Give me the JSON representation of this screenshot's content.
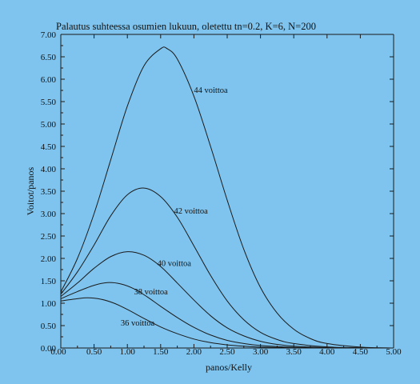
{
  "chart_data": {
    "type": "line",
    "title": "Palautus suhteessa osumien lukuun, oletettu tn=0.2, K=6, N=200",
    "xlabel": "panos/Kelly",
    "ylabel": "Voitot/panos",
    "xlim": [
      0,
      5
    ],
    "ylim": [
      0,
      7
    ],
    "xticks": [
      "0.00",
      "0.50",
      "1.00",
      "1.50",
      "2.00",
      "2.50",
      "3.00",
      "3.50",
      "4.00",
      "4.50",
      "5.00"
    ],
    "yticks": [
      "0.00",
      "0.50",
      "1.00",
      "1.50",
      "2.00",
      "2.50",
      "3.00",
      "3.50",
      "4.00",
      "4.50",
      "5.00",
      "5.50",
      "6.00",
      "6.50",
      "7.00"
    ],
    "grid": false,
    "legend": "inline labels",
    "series": [
      {
        "name": "36 voittoa",
        "x": [
          0,
          0.25,
          0.4,
          0.6,
          0.8,
          1.0,
          1.25,
          1.5,
          1.75,
          2.0,
          2.25,
          2.5,
          2.75,
          3.0,
          3.5,
          4.0,
          4.5,
          5.0
        ],
        "y": [
          1.05,
          1.1,
          1.12,
          1.09,
          1.0,
          0.86,
          0.66,
          0.47,
          0.32,
          0.2,
          0.12,
          0.07,
          0.04,
          0.02,
          0.006,
          0.002,
          0.0005,
          0.0
        ]
      },
      {
        "name": "38 voittoa",
        "x": [
          0,
          0.25,
          0.5,
          0.7,
          0.9,
          1.1,
          1.3,
          1.5,
          1.75,
          2.0,
          2.25,
          2.5,
          2.75,
          3.0,
          3.5,
          4.0,
          4.5,
          5.0
        ],
        "y": [
          1.1,
          1.26,
          1.4,
          1.46,
          1.43,
          1.32,
          1.14,
          0.93,
          0.68,
          0.46,
          0.29,
          0.17,
          0.1,
          0.055,
          0.015,
          0.004,
          0.001,
          0.0
        ]
      },
      {
        "name": "40 voittoa",
        "x": [
          0,
          0.25,
          0.5,
          0.75,
          1.0,
          1.25,
          1.5,
          1.75,
          2.0,
          2.25,
          2.5,
          2.75,
          3.0,
          3.25,
          3.5,
          4.0,
          4.5,
          5.0
        ],
        "y": [
          1.15,
          1.45,
          1.78,
          2.04,
          2.15,
          2.07,
          1.82,
          1.45,
          1.07,
          0.72,
          0.45,
          0.27,
          0.15,
          0.08,
          0.04,
          0.01,
          0.002,
          0.0
        ]
      },
      {
        "name": "42 voittoa",
        "x": [
          0,
          0.25,
          0.5,
          0.75,
          1.0,
          1.25,
          1.5,
          1.75,
          2.0,
          2.25,
          2.5,
          2.75,
          3.0,
          3.25,
          3.5,
          4.0,
          4.5,
          5.0
        ],
        "y": [
          1.2,
          1.7,
          2.3,
          2.95,
          3.42,
          3.57,
          3.38,
          2.92,
          2.28,
          1.62,
          1.05,
          0.63,
          0.35,
          0.19,
          0.1,
          0.025,
          0.006,
          0.0
        ]
      },
      {
        "name": "44 voittoa",
        "x": [
          0,
          0.25,
          0.5,
          0.75,
          1.0,
          1.25,
          1.5,
          1.6,
          1.75,
          2.0,
          2.25,
          2.5,
          2.75,
          3.0,
          3.25,
          3.5,
          3.75,
          4.0,
          4.5,
          5.0
        ],
        "y": [
          1.25,
          2.0,
          3.0,
          4.2,
          5.4,
          6.3,
          6.68,
          6.68,
          6.45,
          5.62,
          4.5,
          3.3,
          2.2,
          1.35,
          0.78,
          0.42,
          0.21,
          0.1,
          0.02,
          0.0
        ]
      }
    ],
    "labels": [
      {
        "text": "44 voittoa",
        "x": 2.0,
        "y": 5.7
      },
      {
        "text": "42 voittoa",
        "x": 1.7,
        "y": 3.0
      },
      {
        "text": "40 voittoa",
        "x": 1.45,
        "y": 1.83
      },
      {
        "text": "38 voittoa",
        "x": 1.1,
        "y": 1.2
      },
      {
        "text": "36 voittoa",
        "x": 0.9,
        "y": 0.5
      }
    ]
  }
}
